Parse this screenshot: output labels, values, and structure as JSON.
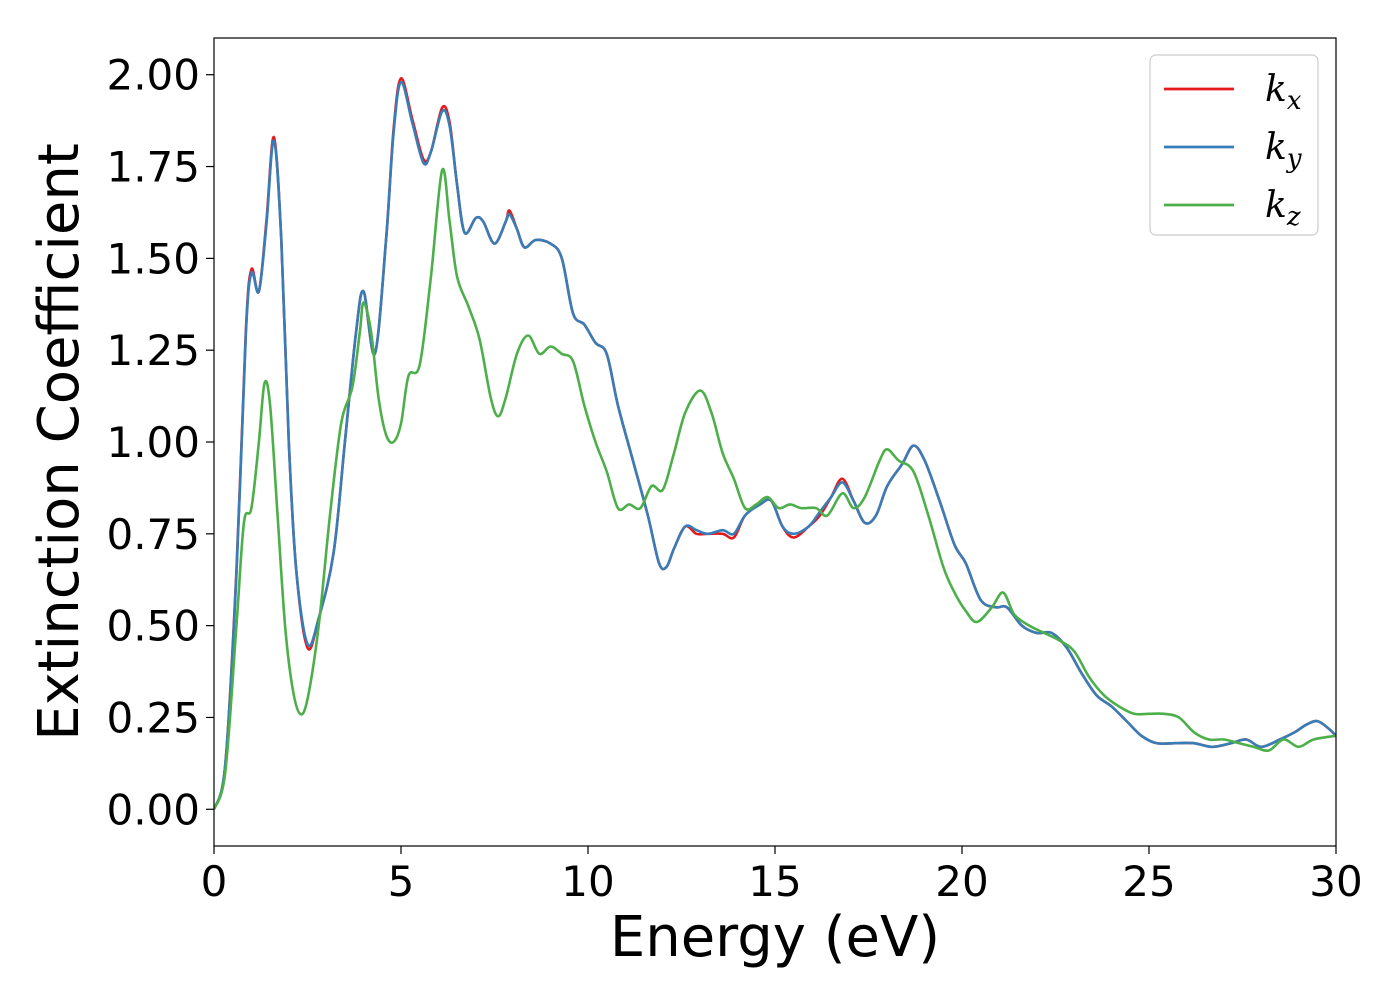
{
  "chart_data": {
    "type": "line",
    "title": "",
    "xlabel": "Energy (eV)",
    "ylabel": "Extinction Coefficient",
    "xlim": [
      0,
      30
    ],
    "ylim": [
      -0.1,
      2.1
    ],
    "xticks": [
      0,
      5,
      10,
      15,
      20,
      25,
      30
    ],
    "xtick_labels": [
      "0",
      "5",
      "10",
      "15",
      "20",
      "25",
      "30"
    ],
    "yticks": [
      0.0,
      0.25,
      0.5,
      0.75,
      1.0,
      1.25,
      1.5,
      1.75,
      2.0
    ],
    "ytick_labels": [
      "0.00",
      "0.25",
      "0.50",
      "0.75",
      "1.00",
      "1.25",
      "1.50",
      "1.75",
      "2.00"
    ],
    "grid": false,
    "legend_position": "top-right",
    "series": [
      {
        "name": "k",
        "subscript": "x",
        "color": "#e41a1c",
        "points": [
          [
            0,
            0
          ],
          [
            0.3,
            0.12
          ],
          [
            0.6,
            0.65
          ],
          [
            0.85,
            1.3
          ],
          [
            1.0,
            1.47
          ],
          [
            1.2,
            1.41
          ],
          [
            1.4,
            1.6
          ],
          [
            1.6,
            1.83
          ],
          [
            1.8,
            1.55
          ],
          [
            2.0,
            1.0
          ],
          [
            2.2,
            0.65
          ],
          [
            2.5,
            0.44
          ],
          [
            2.8,
            0.52
          ],
          [
            3.2,
            0.7
          ],
          [
            3.5,
            1.0
          ],
          [
            3.8,
            1.3
          ],
          [
            4.0,
            1.41
          ],
          [
            4.3,
            1.24
          ],
          [
            4.6,
            1.55
          ],
          [
            4.8,
            1.85
          ],
          [
            5.0,
            1.99
          ],
          [
            5.3,
            1.88
          ],
          [
            5.6,
            1.77
          ],
          [
            5.8,
            1.79
          ],
          [
            6.1,
            1.91
          ],
          [
            6.3,
            1.87
          ],
          [
            6.5,
            1.7
          ],
          [
            6.7,
            1.57
          ],
          [
            7.0,
            1.61
          ],
          [
            7.2,
            1.6
          ],
          [
            7.5,
            1.54
          ],
          [
            7.8,
            1.6
          ],
          [
            7.9,
            1.63
          ],
          [
            8.1,
            1.58
          ],
          [
            8.3,
            1.53
          ],
          [
            8.6,
            1.55
          ],
          [
            9.0,
            1.54
          ],
          [
            9.3,
            1.5
          ],
          [
            9.6,
            1.35
          ],
          [
            9.9,
            1.32
          ],
          [
            10.2,
            1.27
          ],
          [
            10.5,
            1.24
          ],
          [
            10.8,
            1.1
          ],
          [
            11.2,
            0.95
          ],
          [
            11.6,
            0.8
          ],
          [
            11.9,
            0.67
          ],
          [
            12.1,
            0.66
          ],
          [
            12.3,
            0.71
          ],
          [
            12.6,
            0.77
          ],
          [
            12.9,
            0.75
          ],
          [
            13.2,
            0.75
          ],
          [
            13.6,
            0.75
          ],
          [
            13.9,
            0.74
          ],
          [
            14.2,
            0.8
          ],
          [
            14.6,
            0.83
          ],
          [
            14.9,
            0.84
          ],
          [
            15.2,
            0.77
          ],
          [
            15.5,
            0.74
          ],
          [
            15.9,
            0.77
          ],
          [
            16.2,
            0.8
          ],
          [
            16.5,
            0.85
          ],
          [
            16.8,
            0.9
          ],
          [
            17.1,
            0.84
          ],
          [
            17.4,
            0.78
          ],
          [
            17.7,
            0.8
          ],
          [
            18.0,
            0.88
          ],
          [
            18.4,
            0.94
          ],
          [
            18.7,
            0.99
          ],
          [
            19.0,
            0.95
          ],
          [
            19.4,
            0.84
          ],
          [
            19.8,
            0.72
          ],
          [
            20.1,
            0.67
          ],
          [
            20.5,
            0.57
          ],
          [
            20.9,
            0.55
          ],
          [
            21.2,
            0.55
          ],
          [
            21.6,
            0.5
          ],
          [
            22.0,
            0.48
          ],
          [
            22.4,
            0.48
          ],
          [
            22.8,
            0.44
          ],
          [
            23.2,
            0.37
          ],
          [
            23.6,
            0.31
          ],
          [
            24.0,
            0.28
          ],
          [
            24.4,
            0.24
          ],
          [
            24.8,
            0.2
          ],
          [
            25.2,
            0.18
          ],
          [
            25.7,
            0.18
          ],
          [
            26.2,
            0.18
          ],
          [
            26.7,
            0.17
          ],
          [
            27.2,
            0.18
          ],
          [
            27.6,
            0.19
          ],
          [
            28.0,
            0.17
          ],
          [
            28.5,
            0.19
          ],
          [
            28.9,
            0.21
          ],
          [
            29.2,
            0.23
          ],
          [
            29.5,
            0.24
          ],
          [
            29.8,
            0.22
          ],
          [
            30.0,
            0.2
          ]
        ]
      },
      {
        "name": "k",
        "subscript": "y",
        "color": "#377eb8",
        "points": [
          [
            0,
            0
          ],
          [
            0.3,
            0.12
          ],
          [
            0.6,
            0.64
          ],
          [
            0.85,
            1.29
          ],
          [
            1.0,
            1.46
          ],
          [
            1.2,
            1.41
          ],
          [
            1.4,
            1.59
          ],
          [
            1.6,
            1.82
          ],
          [
            1.8,
            1.55
          ],
          [
            2.0,
            1.0
          ],
          [
            2.2,
            0.65
          ],
          [
            2.5,
            0.45
          ],
          [
            2.8,
            0.52
          ],
          [
            3.2,
            0.7
          ],
          [
            3.5,
            1.0
          ],
          [
            3.8,
            1.3
          ],
          [
            4.0,
            1.41
          ],
          [
            4.3,
            1.24
          ],
          [
            4.6,
            1.55
          ],
          [
            4.8,
            1.84
          ],
          [
            5.0,
            1.98
          ],
          [
            5.3,
            1.87
          ],
          [
            5.6,
            1.76
          ],
          [
            5.8,
            1.79
          ],
          [
            6.1,
            1.9
          ],
          [
            6.3,
            1.86
          ],
          [
            6.5,
            1.7
          ],
          [
            6.7,
            1.57
          ],
          [
            7.0,
            1.61
          ],
          [
            7.2,
            1.6
          ],
          [
            7.5,
            1.54
          ],
          [
            7.8,
            1.6
          ],
          [
            7.9,
            1.62
          ],
          [
            8.1,
            1.58
          ],
          [
            8.3,
            1.53
          ],
          [
            8.6,
            1.55
          ],
          [
            9.0,
            1.54
          ],
          [
            9.3,
            1.5
          ],
          [
            9.6,
            1.35
          ],
          [
            9.9,
            1.32
          ],
          [
            10.2,
            1.27
          ],
          [
            10.5,
            1.24
          ],
          [
            10.8,
            1.1
          ],
          [
            11.2,
            0.95
          ],
          [
            11.6,
            0.8
          ],
          [
            11.9,
            0.67
          ],
          [
            12.1,
            0.66
          ],
          [
            12.3,
            0.71
          ],
          [
            12.6,
            0.77
          ],
          [
            12.9,
            0.76
          ],
          [
            13.2,
            0.75
          ],
          [
            13.6,
            0.76
          ],
          [
            13.9,
            0.75
          ],
          [
            14.2,
            0.8
          ],
          [
            14.6,
            0.83
          ],
          [
            14.9,
            0.84
          ],
          [
            15.2,
            0.77
          ],
          [
            15.5,
            0.75
          ],
          [
            15.9,
            0.77
          ],
          [
            16.2,
            0.81
          ],
          [
            16.5,
            0.85
          ],
          [
            16.8,
            0.89
          ],
          [
            17.1,
            0.84
          ],
          [
            17.4,
            0.78
          ],
          [
            17.7,
            0.8
          ],
          [
            18.0,
            0.88
          ],
          [
            18.4,
            0.94
          ],
          [
            18.7,
            0.99
          ],
          [
            19.0,
            0.95
          ],
          [
            19.4,
            0.84
          ],
          [
            19.8,
            0.72
          ],
          [
            20.1,
            0.67
          ],
          [
            20.5,
            0.57
          ],
          [
            20.9,
            0.55
          ],
          [
            21.2,
            0.55
          ],
          [
            21.6,
            0.5
          ],
          [
            22.0,
            0.48
          ],
          [
            22.4,
            0.48
          ],
          [
            22.8,
            0.44
          ],
          [
            23.2,
            0.37
          ],
          [
            23.6,
            0.31
          ],
          [
            24.0,
            0.28
          ],
          [
            24.4,
            0.24
          ],
          [
            24.8,
            0.2
          ],
          [
            25.2,
            0.18
          ],
          [
            25.7,
            0.18
          ],
          [
            26.2,
            0.18
          ],
          [
            26.7,
            0.17
          ],
          [
            27.2,
            0.18
          ],
          [
            27.6,
            0.19
          ],
          [
            28.0,
            0.17
          ],
          [
            28.5,
            0.19
          ],
          [
            28.9,
            0.21
          ],
          [
            29.2,
            0.23
          ],
          [
            29.5,
            0.24
          ],
          [
            29.8,
            0.22
          ],
          [
            30.0,
            0.2
          ]
        ]
      },
      {
        "name": "k",
        "subscript": "z",
        "color": "#4daf4a",
        "points": [
          [
            0,
            0
          ],
          [
            0.3,
            0.1
          ],
          [
            0.6,
            0.5
          ],
          [
            0.8,
            0.78
          ],
          [
            1.0,
            0.82
          ],
          [
            1.2,
            1.0
          ],
          [
            1.35,
            1.16
          ],
          [
            1.5,
            1.1
          ],
          [
            1.7,
            0.8
          ],
          [
            1.9,
            0.5
          ],
          [
            2.1,
            0.33
          ],
          [
            2.3,
            0.26
          ],
          [
            2.5,
            0.3
          ],
          [
            2.8,
            0.5
          ],
          [
            3.1,
            0.8
          ],
          [
            3.4,
            1.05
          ],
          [
            3.7,
            1.15
          ],
          [
            3.9,
            1.3
          ],
          [
            4.0,
            1.38
          ],
          [
            4.2,
            1.3
          ],
          [
            4.4,
            1.12
          ],
          [
            4.6,
            1.02
          ],
          [
            4.8,
            1.0
          ],
          [
            5.0,
            1.05
          ],
          [
            5.2,
            1.18
          ],
          [
            5.5,
            1.21
          ],
          [
            5.8,
            1.45
          ],
          [
            6.1,
            1.74
          ],
          [
            6.3,
            1.6
          ],
          [
            6.5,
            1.45
          ],
          [
            6.8,
            1.37
          ],
          [
            7.1,
            1.28
          ],
          [
            7.4,
            1.12
          ],
          [
            7.6,
            1.07
          ],
          [
            7.8,
            1.12
          ],
          [
            8.1,
            1.24
          ],
          [
            8.4,
            1.29
          ],
          [
            8.7,
            1.24
          ],
          [
            9.0,
            1.26
          ],
          [
            9.3,
            1.24
          ],
          [
            9.6,
            1.22
          ],
          [
            9.9,
            1.1
          ],
          [
            10.2,
            1.0
          ],
          [
            10.5,
            0.92
          ],
          [
            10.8,
            0.82
          ],
          [
            11.1,
            0.83
          ],
          [
            11.4,
            0.82
          ],
          [
            11.7,
            0.88
          ],
          [
            12.0,
            0.87
          ],
          [
            12.3,
            0.97
          ],
          [
            12.6,
            1.08
          ],
          [
            13.0,
            1.14
          ],
          [
            13.3,
            1.08
          ],
          [
            13.6,
            0.97
          ],
          [
            13.9,
            0.9
          ],
          [
            14.2,
            0.82
          ],
          [
            14.5,
            0.83
          ],
          [
            14.8,
            0.85
          ],
          [
            15.1,
            0.82
          ],
          [
            15.4,
            0.83
          ],
          [
            15.7,
            0.82
          ],
          [
            16.1,
            0.82
          ],
          [
            16.4,
            0.8
          ],
          [
            16.8,
            0.86
          ],
          [
            17.1,
            0.82
          ],
          [
            17.4,
            0.85
          ],
          [
            17.8,
            0.95
          ],
          [
            18.0,
            0.98
          ],
          [
            18.3,
            0.95
          ],
          [
            18.7,
            0.92
          ],
          [
            19.1,
            0.8
          ],
          [
            19.5,
            0.66
          ],
          [
            19.8,
            0.59
          ],
          [
            20.1,
            0.54
          ],
          [
            20.4,
            0.51
          ],
          [
            20.8,
            0.55
          ],
          [
            21.1,
            0.59
          ],
          [
            21.4,
            0.53
          ],
          [
            21.8,
            0.5
          ],
          [
            22.2,
            0.48
          ],
          [
            22.6,
            0.46
          ],
          [
            23.0,
            0.43
          ],
          [
            23.4,
            0.36
          ],
          [
            23.8,
            0.31
          ],
          [
            24.2,
            0.28
          ],
          [
            24.6,
            0.26
          ],
          [
            25.0,
            0.26
          ],
          [
            25.4,
            0.26
          ],
          [
            25.8,
            0.25
          ],
          [
            26.2,
            0.21
          ],
          [
            26.6,
            0.19
          ],
          [
            27.0,
            0.19
          ],
          [
            27.4,
            0.18
          ],
          [
            27.8,
            0.17
          ],
          [
            28.2,
            0.16
          ],
          [
            28.6,
            0.19
          ],
          [
            29.0,
            0.17
          ],
          [
            29.4,
            0.19
          ],
          [
            30.0,
            0.2
          ]
        ]
      }
    ]
  }
}
